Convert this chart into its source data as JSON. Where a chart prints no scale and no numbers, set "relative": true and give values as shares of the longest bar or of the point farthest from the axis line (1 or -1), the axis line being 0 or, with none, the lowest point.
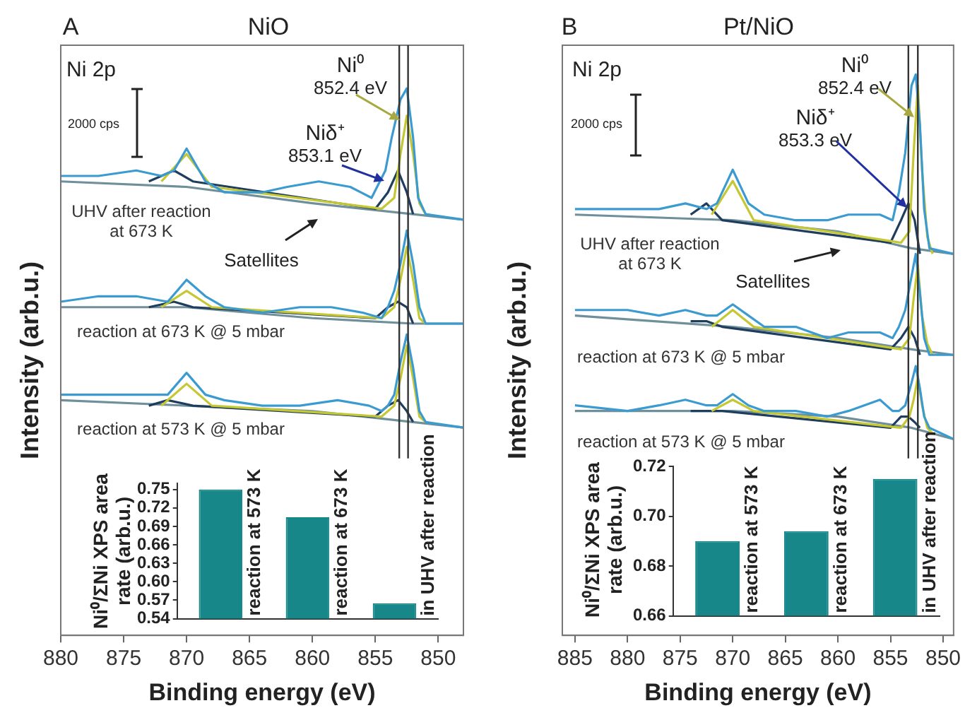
{
  "chart_data": [
    {
      "type": "line",
      "title": "NiO",
      "xlabel": "Binding energy (eV)",
      "ylabel": "Intensity (arb.u.)",
      "relative": true,
      "xlim": [
        880,
        848
      ],
      "xticks": [
        880,
        875,
        870,
        865,
        860,
        855,
        850
      ],
      "grid": false,
      "annotations": [
        "A",
        "Ni 2p",
        "2000 cps",
        "Satellites"
      ],
      "ref_lines": [
        {
          "axis": "x",
          "value": 852.4,
          "label": "Ni⁰ 852.4 eV",
          "color": "#333333"
        },
        {
          "axis": "x",
          "value": 853.1,
          "label": "Niδ⁺ 853.1 eV",
          "color": "#333333"
        }
      ],
      "series": [
        {
          "name": "UHV after reaction at 673 K",
          "color": "#3b9bd1",
          "x": [
            880,
            877,
            874,
            872,
            871,
            870,
            868.5,
            867,
            864,
            862,
            859.5,
            857,
            855.3,
            854.2,
            853.7,
            853,
            852.5,
            852,
            851.6,
            851,
            848
          ],
          "values": [
            0.84,
            0.84,
            0.85,
            0.84,
            0.85,
            0.89,
            0.83,
            0.81,
            0.81,
            0.82,
            0.83,
            0.82,
            0.8,
            0.85,
            0.91,
            0.98,
            1,
            0.91,
            0.8,
            0.77,
            0.76
          ]
        },
        {
          "color": "#c5c832",
          "x": [
            872,
            870,
            868,
            854.5,
            853.5,
            853,
            852.5,
            852,
            851.5,
            851
          ],
          "values": [
            0.83,
            0.88,
            0.82,
            0.78,
            0.8,
            0.88,
            0.95,
            0.88,
            0.79,
            0.77
          ]
        },
        {
          "color": "#1f3d5c",
          "x": [
            873,
            871,
            869.5,
            855,
            854,
            853.2,
            852.5,
            852
          ],
          "values": [
            0.83,
            0.85,
            0.83,
            0.78,
            0.81,
            0.85,
            0.81,
            0.77
          ]
        },
        {
          "color": "#6f8f9a",
          "x": [
            880,
            870,
            860,
            852,
            848
          ],
          "values": [
            0.83,
            0.82,
            0.79,
            0.77,
            0.76
          ]
        },
        {
          "name": "reaction at 673 K @ 5 mbar",
          "color": "#3b9bd1",
          "x": [
            880,
            877,
            874,
            871.5,
            870,
            868.5,
            867,
            864,
            861,
            858.5,
            856,
            854.5,
            854,
            853.5,
            853,
            852.5,
            852,
            851.5,
            851,
            848
          ],
          "values": [
            0.61,
            0.62,
            0.62,
            0.61,
            0.65,
            0.62,
            0.6,
            0.59,
            0.6,
            0.6,
            0.59,
            0.58,
            0.6,
            0.63,
            0.68,
            0.74,
            0.68,
            0.6,
            0.57,
            0.57
          ]
        },
        {
          "color": "#c5c832",
          "x": [
            872,
            870,
            868,
            854.5,
            853.5,
            853,
            852.5,
            852,
            851.5,
            851
          ],
          "values": [
            0.6,
            0.63,
            0.6,
            0.58,
            0.6,
            0.65,
            0.71,
            0.65,
            0.58,
            0.57
          ]
        },
        {
          "color": "#1f3d5c",
          "x": [
            873,
            871,
            869.5,
            855,
            854,
            853.2,
            852.5,
            852
          ],
          "values": [
            0.6,
            0.61,
            0.6,
            0.58,
            0.6,
            0.61,
            0.6,
            0.57
          ]
        },
        {
          "color": "#6f8f9a",
          "x": [
            880,
            870,
            860,
            852,
            848
          ],
          "values": [
            0.6,
            0.6,
            0.58,
            0.57,
            0.57
          ]
        },
        {
          "name": "reaction at 573 K @ 5 mbar",
          "color": "#3b9bd1",
          "x": [
            880,
            876,
            873,
            871.5,
            870,
            868.5,
            867,
            864,
            861,
            858,
            855.5,
            854.5,
            854,
            853.5,
            853,
            852.5,
            852,
            851.5,
            851,
            848
          ],
          "values": [
            0.44,
            0.44,
            0.44,
            0.44,
            0.48,
            0.44,
            0.43,
            0.42,
            0.42,
            0.43,
            0.42,
            0.41,
            0.42,
            0.44,
            0.5,
            0.55,
            0.49,
            0.41,
            0.39,
            0.38
          ]
        },
        {
          "color": "#c5c832",
          "x": [
            872,
            870,
            868,
            854.5,
            853.5,
            853,
            852.5,
            852,
            851.5,
            851
          ],
          "values": [
            0.42,
            0.46,
            0.42,
            0.4,
            0.42,
            0.47,
            0.53,
            0.47,
            0.4,
            0.39
          ]
        },
        {
          "color": "#1f3d5c",
          "x": [
            873,
            871.5,
            869.5,
            855,
            854,
            853.2,
            852.5,
            852
          ],
          "values": [
            0.42,
            0.43,
            0.42,
            0.4,
            0.42,
            0.43,
            0.41,
            0.39
          ]
        },
        {
          "color": "#6f8f9a",
          "x": [
            880,
            870,
            860,
            852,
            848
          ],
          "values": [
            0.43,
            0.42,
            0.41,
            0.39,
            0.38
          ]
        }
      ]
    },
    {
      "type": "bar",
      "ylabel": "Ni⁰/ΣNi XPS area rate (arb.u.)",
      "categories": [
        "reaction at 573 K",
        "reaction at 673 K",
        "in UHV after reaction"
      ],
      "values": [
        0.75,
        0.705,
        0.565
      ],
      "color": "#17878a",
      "ylim": [
        0.54,
        0.76
      ],
      "yticks": [
        0.54,
        0.57,
        {
          "value": 0.6,
          "label": "0.60"
        },
        0.63,
        0.66,
        0.69,
        0.72,
        0.75
      ],
      "grid": false
    },
    {
      "type": "line",
      "title": "Pt/NiO",
      "xlabel": "Binding energy (eV)",
      "ylabel": "Intensity (arb.u.)",
      "relative": true,
      "xlim": [
        886.2,
        849
      ],
      "xticks": [
        885,
        880,
        875,
        870,
        865,
        860,
        855,
        850
      ],
      "grid": false,
      "annotations": [
        "B",
        "Ni 2p",
        "2000 cps",
        "Satellites"
      ],
      "ref_lines": [
        {
          "axis": "x",
          "value": 852.4,
          "label": "Ni⁰ 852.4 eV",
          "color": "#333333"
        },
        {
          "axis": "x",
          "value": 853.3,
          "label": "Niδ⁺ 853.3 eV",
          "color": "#333333"
        }
      ],
      "series": [
        {
          "name": "UHV after reaction at 673 K",
          "color": "#3b9bd1",
          "x": [
            885,
            880,
            877,
            874.5,
            872.5,
            871.5,
            870,
            868.5,
            867,
            864,
            861,
            859,
            856,
            854.8,
            854.2,
            853.6,
            853,
            852.6,
            852.2,
            851.8,
            851.3,
            849
          ],
          "values": [
            0.76,
            0.76,
            0.76,
            0.77,
            0.76,
            0.77,
            0.83,
            0.77,
            0.75,
            0.74,
            0.74,
            0.75,
            0.75,
            0.74,
            0.79,
            0.86,
            0.98,
            1,
            0.91,
            0.76,
            0.69,
            0.68
          ]
        },
        {
          "color": "#c5c832",
          "x": [
            872,
            870,
            868,
            854,
            853.2,
            852.8,
            852.4,
            852,
            851.5,
            851
          ],
          "values": [
            0.75,
            0.81,
            0.74,
            0.7,
            0.72,
            0.86,
            0.98,
            0.83,
            0.71,
            0.68
          ]
        },
        {
          "color": "#1f3d5c",
          "x": [
            874,
            872.5,
            871,
            855,
            854,
            853.3,
            852.7,
            852.2
          ],
          "values": [
            0.75,
            0.77,
            0.74,
            0.7,
            0.74,
            0.77,
            0.74,
            0.68
          ]
        },
        {
          "color": "#6f8f9a",
          "x": [
            885,
            870,
            860,
            853,
            849
          ],
          "values": [
            0.75,
            0.74,
            0.72,
            0.69,
            0.68
          ]
        },
        {
          "name": "reaction at 673 K @ 5 mbar",
          "color": "#3b9bd1",
          "x": [
            885,
            880,
            877,
            874.5,
            872.5,
            871.5,
            870,
            868.5,
            867,
            864,
            861,
            859,
            856,
            854.8,
            854.2,
            853.6,
            853,
            852.6,
            852.2,
            851.8,
            851.3,
            849
          ],
          "values": [
            0.58,
            0.58,
            0.57,
            0.58,
            0.57,
            0.57,
            0.59,
            0.57,
            0.55,
            0.55,
            0.53,
            0.54,
            0.54,
            0.53,
            0.55,
            0.58,
            0.64,
            0.68,
            0.61,
            0.53,
            0.5,
            0.5
          ]
        },
        {
          "color": "#c5c832",
          "x": [
            872,
            870,
            868,
            854,
            853.2,
            852.8,
            852.4,
            852,
            851.5,
            851
          ],
          "values": [
            0.55,
            0.58,
            0.55,
            0.51,
            0.53,
            0.6,
            0.66,
            0.57,
            0.52,
            0.5
          ]
        },
        {
          "color": "#1f3d5c",
          "x": [
            874,
            872.5,
            871,
            855,
            854,
            853.3,
            852.7,
            852.2
          ],
          "values": [
            0.56,
            0.56,
            0.55,
            0.51,
            0.53,
            0.55,
            0.53,
            0.5
          ]
        },
        {
          "color": "#6f8f9a",
          "x": [
            885,
            870,
            860,
            853,
            849
          ],
          "values": [
            0.57,
            0.55,
            0.53,
            0.51,
            0.5
          ]
        },
        {
          "name": "reaction at 573 K @ 5 mbar",
          "color": "#3b9bd1",
          "x": [
            885,
            880,
            877,
            874.5,
            872.5,
            871.5,
            870,
            868.5,
            867,
            864,
            861,
            859,
            856,
            854.8,
            854.2,
            853.6,
            853,
            852.6,
            852.2,
            851.8,
            851.3,
            849
          ],
          "values": [
            0.41,
            0.4,
            0.41,
            0.42,
            0.41,
            0.41,
            0.43,
            0.41,
            0.4,
            0.4,
            0.39,
            0.4,
            0.42,
            0.4,
            0.4,
            0.41,
            0.45,
            0.48,
            0.44,
            0.39,
            0.37,
            0.35
          ]
        },
        {
          "color": "#c5c832",
          "x": [
            872,
            870,
            868,
            854,
            853.2,
            852.8,
            852.4,
            852,
            851.5,
            851
          ],
          "values": [
            0.4,
            0.42,
            0.4,
            0.37,
            0.39,
            0.42,
            0.46,
            0.41,
            0.37,
            0.36
          ]
        },
        {
          "color": "#1f3d5c",
          "x": [
            874,
            872.5,
            871,
            855,
            854,
            853.3,
            852.7,
            852.2
          ],
          "values": [
            0.4,
            0.4,
            0.4,
            0.37,
            0.39,
            0.39,
            0.38,
            0.37
          ]
        },
        {
          "color": "#6f8f9a",
          "x": [
            885,
            870,
            860,
            853,
            849
          ],
          "values": [
            0.4,
            0.4,
            0.39,
            0.37,
            0.35
          ]
        }
      ]
    },
    {
      "type": "bar",
      "ylabel": "Ni⁰/ΣNi XPS area rate (arb.u.)",
      "categories": [
        "reaction at 573 K",
        "reaction at 673 K",
        "in UHV after reaction"
      ],
      "values": [
        0.69,
        0.694,
        0.715
      ],
      "color": "#17878a",
      "ylim": [
        0.66,
        0.72
      ],
      "yticks": [
        0.66,
        0.68,
        {
          "value": 0.7,
          "label": "0.70"
        },
        0.72
      ],
      "grid": false
    }
  ]
}
